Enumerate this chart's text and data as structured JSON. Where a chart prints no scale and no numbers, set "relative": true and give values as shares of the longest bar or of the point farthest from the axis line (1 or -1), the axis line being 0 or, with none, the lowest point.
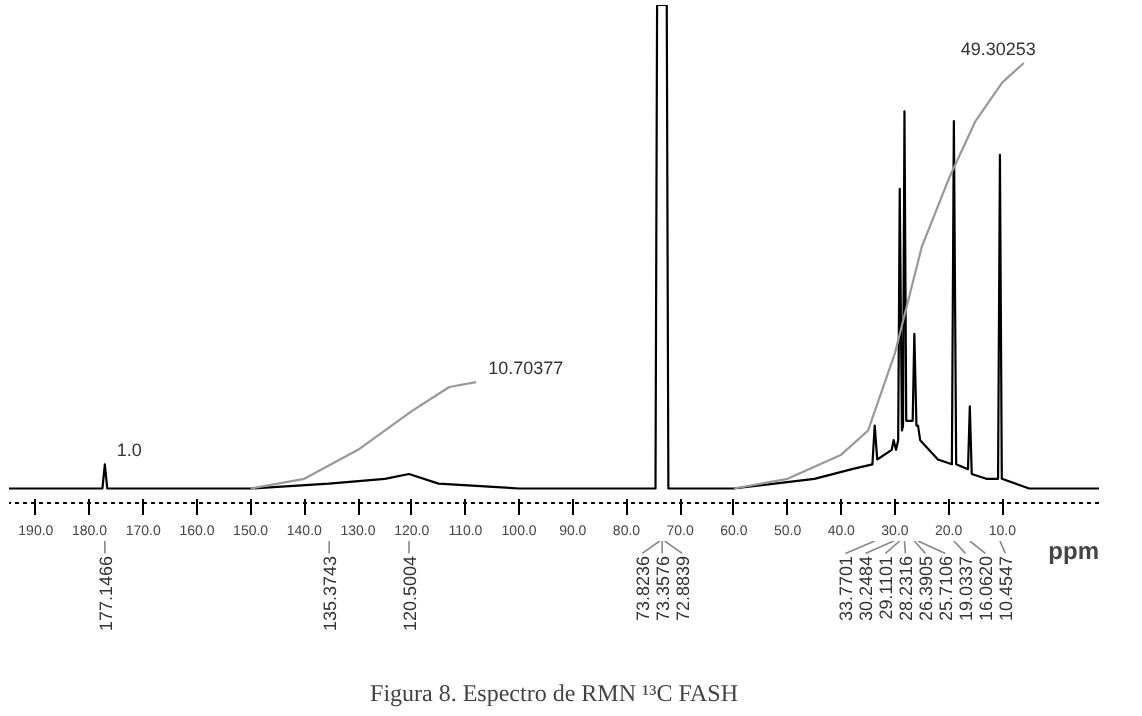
{
  "chart_data": {
    "type": "line",
    "relative": true,
    "title": "Figura 8. Espectro de RMN ¹³C FASH",
    "xlabel": "ppm",
    "xlim": [
      195,
      -8
    ],
    "xticks": [
      {
        "value": 190,
        "label": "190.0"
      },
      {
        "value": 180,
        "label": "180.0"
      },
      {
        "value": 170,
        "label": "170.0"
      },
      {
        "value": 160,
        "label": "160.0"
      },
      {
        "value": 150,
        "label": "150.0"
      },
      {
        "value": 140,
        "label": "140.0"
      },
      {
        "value": 130,
        "label": "130.0"
      },
      {
        "value": 120,
        "label": "120.0"
      },
      {
        "value": 110,
        "label": "110.0"
      },
      {
        "value": 100,
        "label": "100.0"
      },
      {
        "value": 90,
        "label": "90.0"
      },
      {
        "value": 80,
        "label": "80.0"
      },
      {
        "value": 70,
        "label": "70.0"
      },
      {
        "value": 60,
        "label": "60.0"
      },
      {
        "value": 50,
        "label": "50.0"
      },
      {
        "value": 40,
        "label": "40.0"
      },
      {
        "value": 30,
        "label": "30.0"
      },
      {
        "value": 20,
        "label": "20.0"
      },
      {
        "value": 10,
        "label": "10.0"
      }
    ],
    "grid": false,
    "series": [
      {
        "color": "#000000",
        "x": [
          195,
          180,
          177.6,
          177.15,
          176.7,
          150,
          135.4,
          125,
          120.5,
          115,
          100,
          80,
          74.6,
          74.3,
          73.82,
          73.36,
          72.88,
          72.5,
          72.2,
          60,
          45,
          38,
          34.2,
          33.77,
          33.3,
          30.6,
          30.25,
          29.8,
          29.4,
          29.11,
          28.7,
          28.5,
          28.23,
          27.9,
          26.7,
          26.39,
          26.0,
          25.71,
          25.3,
          22,
          19.4,
          19.03,
          18.6,
          16.4,
          16.06,
          15.7,
          13,
          10.8,
          10.45,
          10.1,
          5,
          -8
        ],
        "values": [
          0,
          0,
          0,
          0.05,
          0,
          0,
          0.01,
          0.02,
          0.03,
          0.01,
          0,
          0,
          0,
          1.0,
          1.0,
          1.0,
          1.0,
          1.0,
          0,
          0,
          0.02,
          0.04,
          0.05,
          0.13,
          0.06,
          0.08,
          0.1,
          0.08,
          0.1,
          0.62,
          0.12,
          0.13,
          0.78,
          0.14,
          0.14,
          0.32,
          0.13,
          0.13,
          0.1,
          0.06,
          0.05,
          0.76,
          0.05,
          0.04,
          0.17,
          0.03,
          0.02,
          0.02,
          0.69,
          0.02,
          0,
          0
        ]
      },
      {
        "color": "#999999",
        "x": [
          150,
          140,
          130,
          120,
          113,
          108,
          84,
          60,
          50,
          40,
          35,
          30,
          25,
          20,
          15,
          10,
          6
        ],
        "values": [
          0,
          0.02,
          0.08,
          0.16,
          0.21,
          0.22,
          null,
          0,
          0.02,
          0.07,
          0.12,
          0.28,
          0.5,
          0.64,
          0.76,
          0.84,
          0.88
        ]
      }
    ],
    "annotations": [
      {
        "text": "1.0",
        "x": 177.15,
        "y": 0.05
      },
      {
        "text": "10.70377",
        "x": 108,
        "y": 0.22
      },
      {
        "text": "49.30253",
        "x": 6,
        "y": 0.88
      },
      {
        "text": "177.1466",
        "x": 177.15
      },
      {
        "text": "135.3743",
        "x": 135.37
      },
      {
        "text": "120.5004",
        "x": 120.5
      },
      {
        "text": "73.8236",
        "x": 73.82
      },
      {
        "text": "73.3576",
        "x": 73.36
      },
      {
        "text": "72.8839",
        "x": 72.88
      },
      {
        "text": "33.7701",
        "x": 33.77
      },
      {
        "text": "30.2484",
        "x": 30.25
      },
      {
        "text": "29.1101",
        "x": 29.11
      },
      {
        "text": "28.2316",
        "x": 28.23
      },
      {
        "text": "26.3905",
        "x": 26.39
      },
      {
        "text": "25.7106",
        "x": 25.71
      },
      {
        "text": "19.0337",
        "x": 19.03
      },
      {
        "text": "16.0620",
        "x": 16.06
      },
      {
        "text": "10.4547",
        "x": 10.45
      }
    ]
  }
}
